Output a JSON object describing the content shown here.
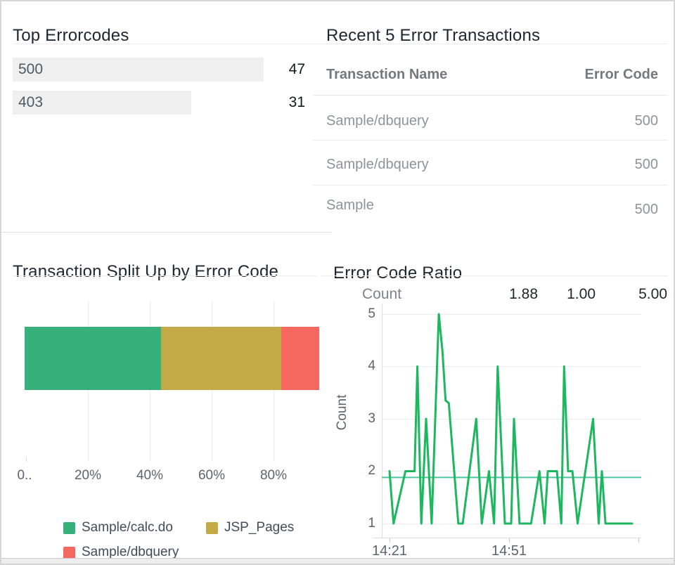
{
  "panels": {
    "top_errorcodes": {
      "title": "Top Errorcodes",
      "rows": [
        {
          "code": "500",
          "count": "47"
        },
        {
          "code": "403",
          "count": "31"
        }
      ]
    },
    "recent_error_transactions": {
      "title": "Recent 5 Error Transactions",
      "columns": {
        "name": "Transaction Name",
        "code": "Error Code"
      },
      "rows": [
        {
          "name": "Sample/dbquery",
          "code": "500"
        },
        {
          "name": "Sample/dbquery",
          "code": "500"
        },
        {
          "name": "Sample",
          "code": "500"
        }
      ]
    },
    "transaction_split": {
      "title": "Transaction Split Up by Error Code",
      "x_ticks": [
        "0..",
        "20%",
        "40%",
        "60%",
        "80%"
      ],
      "legend": [
        {
          "label": "Sample/calc.do",
          "color": "#36b17c"
        },
        {
          "label": "JSP_Pages",
          "color": "#c4aa47"
        },
        {
          "label": "Sample/dbquery",
          "color": "#f5685f"
        }
      ]
    },
    "error_code_ratio": {
      "title": "Error Code Ratio",
      "stats": {
        "label": "Count",
        "avg": "1.88",
        "min": "1.00",
        "max": "5.00"
      },
      "ylabel": "Count",
      "y_ticks": [
        "5",
        "4",
        "3",
        "2",
        "1"
      ],
      "x_ticks": [
        "14:21",
        "14:51"
      ]
    }
  },
  "colors": {
    "calc_do_green": "#36b17c",
    "jsp_gold": "#c4aa47",
    "dbquery_red": "#f5685f",
    "ratio_line_green": "#1cb75f",
    "ratio_avg_teal": "#4ac69e",
    "bar_track_gray": "#efefef"
  },
  "chart_data": [
    {
      "id": "top_errorcodes",
      "type": "bar",
      "orientation": "horizontal",
      "title": "Top Errorcodes",
      "categories": [
        "500",
        "403"
      ],
      "values": [
        47,
        31
      ],
      "bar_pct": [
        80,
        57
      ]
    },
    {
      "id": "recent_error_transactions",
      "type": "table",
      "title": "Recent 5 Error Transactions",
      "columns": [
        "Transaction Name",
        "Error Code"
      ],
      "rows": [
        [
          "Sample/dbquery",
          "500"
        ],
        [
          "Sample/dbquery",
          "500"
        ],
        [
          "Sample",
          "500"
        ]
      ]
    },
    {
      "id": "transaction_split",
      "type": "bar",
      "subtype": "stacked-horizontal-percent",
      "title": "Transaction Split Up by Error Code",
      "series": [
        {
          "name": "Sample/calc.do",
          "color": "#36b17c",
          "pct": 44
        },
        {
          "name": "JSP_Pages",
          "color": "#c4aa47",
          "pct": 39
        },
        {
          "name": "Sample/dbquery",
          "color": "#f5685f",
          "pct": 17
        }
      ],
      "x_ticks": [
        "0..",
        "20%",
        "40%",
        "60%",
        "80%"
      ],
      "xlabel": "",
      "ylabel": "",
      "xlim": [
        0,
        95
      ],
      "grid": true,
      "legend_position": "bottom"
    },
    {
      "id": "error_code_ratio",
      "type": "line",
      "title": "Error Code Ratio",
      "xlabel": "",
      "ylabel": "Count",
      "ylim": [
        1,
        5
      ],
      "y_ticks": [
        5,
        4,
        3,
        2,
        1
      ],
      "x_tick_labels": [
        "14:21",
        "14:51"
      ],
      "x_unit": "minutes after 14:21",
      "stats": {
        "label": "Count",
        "avg": 1.88,
        "min": 1.0,
        "max": 5.0
      },
      "avg_line": 1.88,
      "line_color": "#1cb75f",
      "avg_color": "#4ac69e",
      "points": [
        [
          0,
          2
        ],
        [
          1,
          1
        ],
        [
          4,
          2
        ],
        [
          6.3,
          2
        ],
        [
          7,
          4
        ],
        [
          8,
          1
        ],
        [
          9.2,
          3
        ],
        [
          10.6,
          1
        ],
        [
          12.4,
          5
        ],
        [
          13.3,
          4.3
        ],
        [
          14.1,
          3.35
        ],
        [
          14.9,
          3.3
        ],
        [
          17.3,
          1
        ],
        [
          18.4,
          1
        ],
        [
          21.8,
          3
        ],
        [
          23.2,
          1
        ],
        [
          25,
          2
        ],
        [
          26.3,
          1
        ],
        [
          27.2,
          4
        ],
        [
          29,
          1
        ],
        [
          30.6,
          1
        ],
        [
          31.3,
          3
        ],
        [
          32.7,
          1
        ],
        [
          35.6,
          1
        ],
        [
          37.7,
          2
        ],
        [
          39,
          1
        ],
        [
          39.8,
          2
        ],
        [
          42.1,
          2
        ],
        [
          43.2,
          1
        ],
        [
          43.9,
          4
        ],
        [
          44.9,
          2
        ],
        [
          46,
          2
        ],
        [
          47.3,
          1
        ],
        [
          51.2,
          3
        ],
        [
          52.6,
          1
        ],
        [
          53.4,
          2
        ],
        [
          54.3,
          1
        ],
        [
          61,
          1
        ]
      ]
    }
  ]
}
